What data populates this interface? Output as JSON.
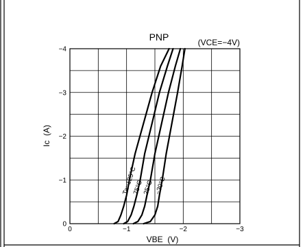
{
  "chart_data": {
    "type": "line",
    "title": "PNP",
    "condition": "(VCE=−4V)",
    "xlabel": "VBE  (V)",
    "ylabel": "Ic  (A)",
    "xlim": [
      0,
      -3
    ],
    "ylim": [
      0,
      -4
    ],
    "x_tick_labels": [
      "0",
      "−1",
      "−2",
      "−3"
    ],
    "y_tick_labels": [
      "0",
      "−1",
      "−2",
      "−3",
      "−4"
    ],
    "grid": true,
    "series": [
      {
        "name": "Ta=125°C",
        "x": [
          -0.78,
          -0.85,
          -0.9,
          -0.95,
          -1.0,
          -1.05,
          -1.15,
          -1.3,
          -1.45,
          -1.6,
          -1.75
        ],
        "y": [
          0,
          -0.05,
          -0.2,
          -0.4,
          -0.65,
          -1.0,
          -1.6,
          -2.3,
          -3.0,
          -3.6,
          -4.0
        ]
      },
      {
        "name": "75°C",
        "x": [
          -0.95,
          -1.02,
          -1.08,
          -1.13,
          -1.18,
          -1.24,
          -1.32,
          -1.45,
          -1.58,
          -1.72,
          -1.82
        ],
        "y": [
          0,
          -0.05,
          -0.2,
          -0.4,
          -0.65,
          -1.0,
          -1.6,
          -2.3,
          -3.0,
          -3.6,
          -4.0
        ]
      },
      {
        "name": "25°C",
        "x": [
          -1.12,
          -1.2,
          -1.27,
          -1.32,
          -1.36,
          -1.42,
          -1.5,
          -1.62,
          -1.74,
          -1.86,
          -1.95
        ],
        "y": [
          0,
          -0.05,
          -0.2,
          -0.4,
          -0.65,
          -1.0,
          -1.6,
          -2.3,
          -3.0,
          -3.6,
          -4.0
        ]
      },
      {
        "name": "−30°C",
        "x": [
          -1.3,
          -1.42,
          -1.5,
          -1.55,
          -1.58,
          -1.63,
          -1.7,
          -1.8,
          -1.9,
          -1.98,
          -2.03
        ],
        "y": [
          0,
          -0.05,
          -0.2,
          -0.4,
          -0.65,
          -1.0,
          -1.6,
          -2.3,
          -3.0,
          -3.6,
          -4.0
        ]
      }
    ]
  }
}
